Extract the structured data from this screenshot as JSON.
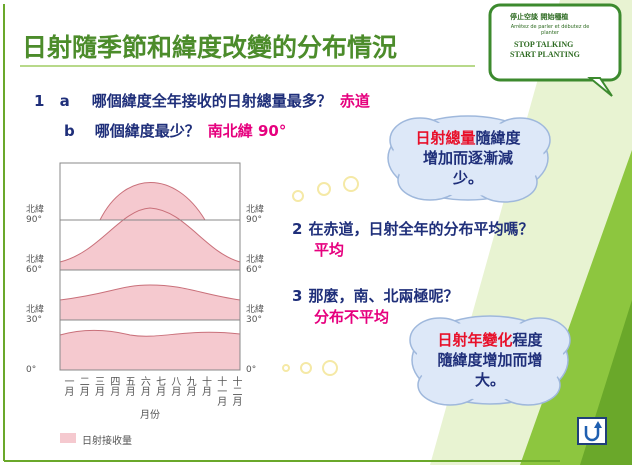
{
  "title": "日射隨季節和緯度改變的分布情況",
  "badge": {
    "line1": "停止空談 開始種植",
    "line2": "Arrêtez de parler et débutez de planter",
    "line3": "STOP TALKING",
    "line4": "START PLANTING"
  },
  "questions": [
    {
      "number": "1",
      "label": "a",
      "text": "哪個緯度全年接收的日射總量最多？",
      "answer": "赤道"
    },
    {
      "label": "b",
      "text": "哪個緯度最少？",
      "answer": "南北緯 90°"
    },
    {
      "number": "2",
      "text": "在赤道，日射全年的分布平均嗎？",
      "answer": "平均"
    },
    {
      "number": "3",
      "text": "那麼，南、北兩極呢？",
      "answer": "分布不平均"
    }
  ],
  "clouds": [
    {
      "highlight": "日射總量",
      "text": "隨緯度增加而逐漸減少。"
    },
    {
      "highlight": "日射年變化",
      "text": "程度隨緯度增加而增大。"
    }
  ],
  "figure": {
    "left_labels": [
      [
        "北緯",
        "90°"
      ],
      [
        "北緯",
        "60°"
      ],
      [
        "北緯",
        "30°"
      ],
      [
        "0°"
      ]
    ],
    "right_labels": [
      [
        "北緯",
        "90°"
      ],
      [
        "北緯",
        "60°"
      ],
      [
        "北緯",
        "30°"
      ],
      [
        "0°"
      ]
    ],
    "months": [
      "一月",
      "二月",
      "三月",
      "四月",
      "五月",
      "六月",
      "七月",
      "八月",
      "九月",
      "十月",
      "十一月",
      "十二月"
    ],
    "x_label": "月份",
    "legend": "日射接收量"
  }
}
